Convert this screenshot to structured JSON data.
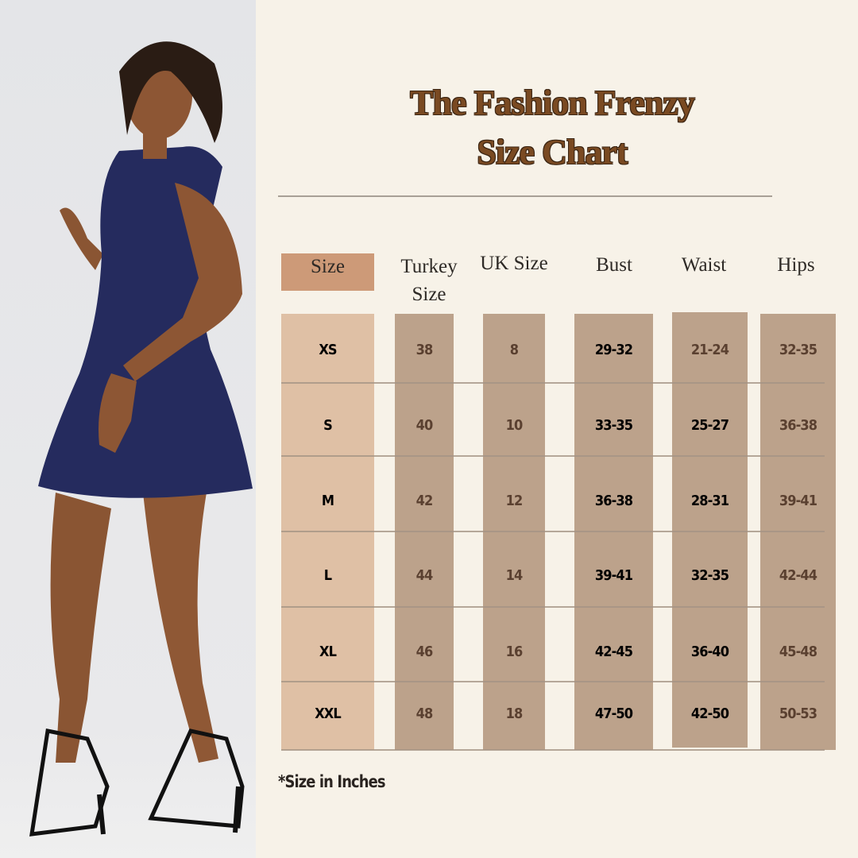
{
  "title": {
    "line1": "The Fashion Frenzy",
    "line2": "Size Chart"
  },
  "colors": {
    "background": "#f7f2e8",
    "title": "#7a4a22",
    "size_column": "#dfc0a5",
    "data_column": "#bca28b",
    "header_size_bg": "#cd9a78",
    "text_dark": "#000000",
    "text_brown": "#5a4030"
  },
  "headers": [
    "Size",
    "Turkey Size",
    "UK Size",
    "Bust",
    "Waist",
    "Hips"
  ],
  "rows": [
    [
      "XS",
      "38",
      "8",
      "29-32",
      "21-24",
      "32-35"
    ],
    [
      "S",
      "40",
      "10",
      "33-35",
      "25-27",
      "36-38"
    ],
    [
      "M",
      "42",
      "12",
      "36-38",
      "28-31",
      "39-41"
    ],
    [
      "L",
      "44",
      "14",
      "39-41",
      "32-35",
      "42-44"
    ],
    [
      "XL",
      "46",
      "16",
      "42-45",
      "36-40",
      "45-48"
    ],
    [
      "XXL",
      "48",
      "18",
      "47-50",
      "42-50",
      "50-53"
    ]
  ],
  "note": "*Size in Inches"
}
